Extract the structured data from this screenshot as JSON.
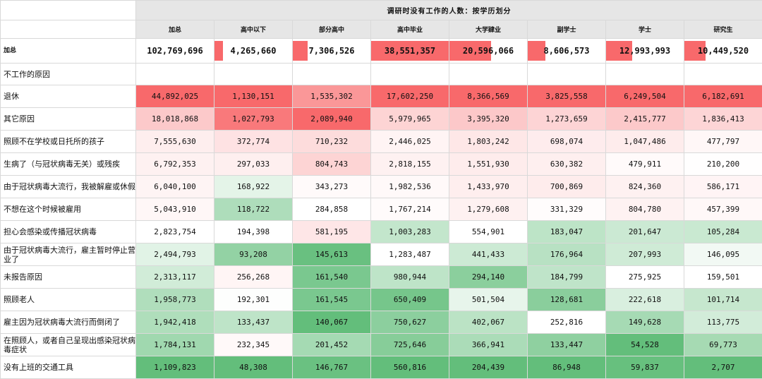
{
  "chart_data": {
    "type": "table",
    "title": "调研时没有工作的人数：按学历划分",
    "columns": [
      "加总",
      "高中以下",
      "部分高中",
      "高中毕业",
      "大学肄业",
      "副学士",
      "学士",
      "研究生"
    ],
    "total_label": "加总",
    "totals": [
      "102,769,696",
      "4,265,660",
      "7,306,526",
      "38,551,357",
      "20,596,066",
      "8,606,573",
      "12,993,993",
      "10,449,520"
    ],
    "total_values": [
      102769696,
      4265660,
      7306526,
      38551357,
      20596066,
      8606573,
      12993993,
      10449520
    ],
    "section_label": "不工作的原因",
    "rows": [
      {
        "label": "退休",
        "cells": [
          "44,892,025",
          "1,130,151",
          "1,535,302",
          "17,602,250",
          "8,366,569",
          "3,825,558",
          "6,249,504",
          "6,182,691"
        ]
      },
      {
        "label": "其它原因",
        "cells": [
          "18,018,868",
          "1,027,793",
          "2,089,940",
          "5,979,965",
          "3,395,320",
          "1,273,659",
          "2,415,777",
          "1,836,413"
        ]
      },
      {
        "label": "照顾不在学校或日托所的孩子",
        "cells": [
          "7,555,630",
          "372,774",
          "710,232",
          "2,446,025",
          "1,803,242",
          "698,074",
          "1,047,486",
          "477,797"
        ]
      },
      {
        "label": "生病了（与冠状病毒无关）或残疾",
        "cells": [
          "6,792,353",
          "297,033",
          "804,743",
          "2,818,155",
          "1,551,930",
          "630,382",
          "479,911",
          "210,200"
        ]
      },
      {
        "label": "由于冠状病毒大流行，我被解雇或休假",
        "cells": [
          "6,040,100",
          "168,922",
          "343,273",
          "1,982,536",
          "1,433,970",
          "700,869",
          "824,360",
          "586,171"
        ]
      },
      {
        "label": "不想在这个时候被雇用",
        "cells": [
          "5,043,910",
          "118,722",
          "284,858",
          "1,767,214",
          "1,279,608",
          "331,329",
          "804,780",
          "457,399"
        ]
      },
      {
        "label": "担心会感染或传播冠状病毒",
        "cells": [
          "2,823,754",
          "194,398",
          "581,195",
          "1,003,283",
          "554,901",
          "183,047",
          "201,647",
          "105,284"
        ]
      },
      {
        "label": "由于冠状病毒大流行，雇主暂时停止营业了",
        "cells": [
          "2,494,793",
          "93,208",
          "145,613",
          "1,283,487",
          "441,433",
          "176,964",
          "207,993",
          "146,095"
        ]
      },
      {
        "label": "未报告原因",
        "cells": [
          "2,313,117",
          "256,268",
          "161,540",
          "980,944",
          "294,140",
          "184,799",
          "275,925",
          "159,501"
        ]
      },
      {
        "label": "照顾老人",
        "cells": [
          "1,958,773",
          "192,301",
          "161,545",
          "650,409",
          "501,504",
          "128,681",
          "222,618",
          "101,714"
        ]
      },
      {
        "label": "雇主因为冠状病毒大流行而倒闭了",
        "cells": [
          "1,942,418",
          "133,437",
          "140,067",
          "750,627",
          "402,067",
          "252,816",
          "149,628",
          "113,775"
        ]
      },
      {
        "label": "在照顾人，或者自己呈现出感染冠状病毒症状",
        "cells": [
          "1,784,131",
          "232,345",
          "201,452",
          "725,646",
          "366,941",
          "133,447",
          "54,528",
          "69,773"
        ]
      },
      {
        "label": "没有上班的交通工具",
        "cells": [
          "1,109,823",
          "48,308",
          "146,767",
          "560,816",
          "204,439",
          "86,948",
          "59,837",
          "2,707"
        ]
      }
    ],
    "colors": {
      "high": "#f8696b",
      "mid": "#ffffff",
      "low": "#63be7b",
      "bar": "#f8696b",
      "header_bg": "#e6e6e6"
    }
  }
}
